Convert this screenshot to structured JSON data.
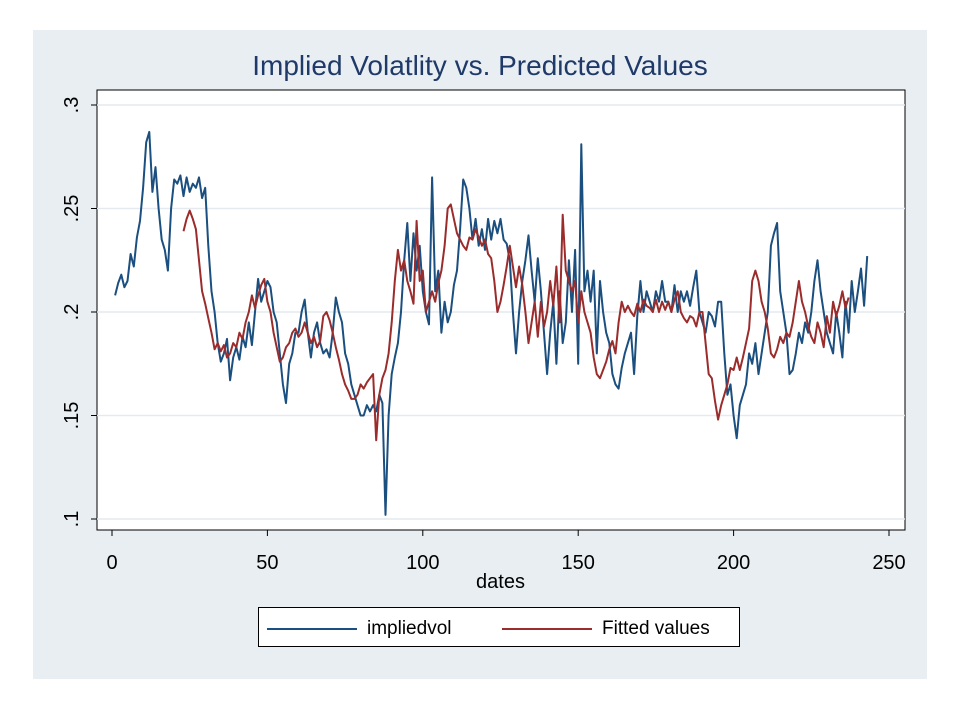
{
  "chart_data": {
    "type": "line",
    "title": "Implied Volatlity vs. Predicted Values",
    "xlabel": "dates",
    "ylabel": "",
    "xlim": [
      0,
      250
    ],
    "ylim": [
      0.1,
      0.3
    ],
    "x_ticks": [
      0,
      50,
      100,
      150,
      200,
      250
    ],
    "x_tick_labels": [
      "0",
      "50",
      "100",
      "150",
      "200",
      "250"
    ],
    "y_ticks": [
      0.1,
      0.15,
      0.2,
      0.25,
      0.3
    ],
    "y_tick_labels": [
      ".1",
      ".15",
      ".2",
      ".25",
      ".3"
    ],
    "grid": "horizontal",
    "legend_position": "bottom",
    "series": [
      {
        "name": "impliedvol",
        "color": "#1b4f7f",
        "x_start": 1,
        "values": [
          0.208,
          0.214,
          0.218,
          0.212,
          0.215,
          0.228,
          0.222,
          0.236,
          0.244,
          0.26,
          0.282,
          0.287,
          0.258,
          0.27,
          0.25,
          0.235,
          0.23,
          0.22,
          0.25,
          0.264,
          0.262,
          0.266,
          0.256,
          0.265,
          0.258,
          0.262,
          0.26,
          0.265,
          0.255,
          0.26,
          0.232,
          0.21,
          0.2,
          0.185,
          0.176,
          0.18,
          0.187,
          0.167,
          0.178,
          0.183,
          0.177,
          0.188,
          0.183,
          0.195,
          0.184,
          0.2,
          0.216,
          0.205,
          0.21,
          0.215,
          0.212,
          0.2,
          0.195,
          0.18,
          0.165,
          0.156,
          0.175,
          0.18,
          0.19,
          0.19,
          0.2,
          0.206,
          0.19,
          0.178,
          0.19,
          0.195,
          0.185,
          0.18,
          0.182,
          0.178,
          0.19,
          0.207,
          0.2,
          0.195,
          0.18,
          0.175,
          0.165,
          0.16,
          0.155,
          0.15,
          0.15,
          0.155,
          0.152,
          0.155,
          0.152,
          0.16,
          0.156,
          0.102,
          0.15,
          0.17,
          0.178,
          0.185,
          0.2,
          0.225,
          0.243,
          0.215,
          0.238,
          0.22,
          0.232,
          0.21,
          0.2,
          0.194,
          0.265,
          0.21,
          0.22,
          0.19,
          0.205,
          0.195,
          0.2,
          0.213,
          0.22,
          0.24,
          0.264,
          0.26,
          0.25,
          0.235,
          0.245,
          0.232,
          0.24,
          0.23,
          0.245,
          0.235,
          0.244,
          0.238,
          0.245,
          0.235,
          0.233,
          0.225,
          0.2,
          0.18,
          0.2,
          0.215,
          0.225,
          0.237,
          0.22,
          0.205,
          0.226,
          0.21,
          0.19,
          0.17,
          0.19,
          0.205,
          0.175,
          0.21,
          0.185,
          0.195,
          0.225,
          0.2,
          0.23,
          0.175,
          0.281,
          0.21,
          0.22,
          0.205,
          0.22,
          0.18,
          0.215,
          0.2,
          0.19,
          0.185,
          0.17,
          0.165,
          0.163,
          0.173,
          0.18,
          0.185,
          0.19,
          0.17,
          0.198,
          0.215,
          0.2,
          0.21,
          0.205,
          0.2,
          0.21,
          0.205,
          0.215,
          0.205,
          0.205,
          0.2,
          0.213,
          0.2,
          0.21,
          0.205,
          0.21,
          0.203,
          0.212,
          0.22,
          0.2,
          0.195,
          0.19,
          0.2,
          0.198,
          0.193,
          0.205,
          0.205,
          0.18,
          0.16,
          0.165,
          0.15,
          0.139,
          0.155,
          0.16,
          0.165,
          0.18,
          0.175,
          0.185,
          0.17,
          0.18,
          0.19,
          0.2,
          0.232,
          0.238,
          0.243,
          0.21,
          0.2,
          0.19,
          0.17,
          0.172,
          0.18,
          0.19,
          0.185,
          0.195,
          0.19,
          0.2,
          0.215,
          0.225,
          0.21,
          0.2,
          0.19,
          0.185,
          0.18,
          0.2,
          0.19,
          0.178,
          0.205,
          0.19,
          0.215,
          0.2,
          0.21,
          0.221,
          0.203,
          0.227
        ]
      },
      {
        "name": "Fitted values",
        "color": "#9b2c2c",
        "x_start": 23,
        "values": [
          0.239,
          0.245,
          0.249,
          0.245,
          0.24,
          0.225,
          0.21,
          0.204,
          0.197,
          0.19,
          0.182,
          0.185,
          0.181,
          0.184,
          0.178,
          0.18,
          0.185,
          0.183,
          0.19,
          0.187,
          0.195,
          0.2,
          0.208,
          0.202,
          0.208,
          0.213,
          0.216,
          0.205,
          0.2,
          0.19,
          0.183,
          0.176,
          0.178,
          0.183,
          0.185,
          0.19,
          0.192,
          0.188,
          0.19,
          0.195,
          0.19,
          0.185,
          0.188,
          0.183,
          0.186,
          0.198,
          0.2,
          0.196,
          0.19,
          0.183,
          0.177,
          0.17,
          0.165,
          0.162,
          0.158,
          0.158,
          0.16,
          0.165,
          0.163,
          0.166,
          0.168,
          0.17,
          0.138,
          0.16,
          0.168,
          0.172,
          0.18,
          0.195,
          0.215,
          0.23,
          0.22,
          0.225,
          0.215,
          0.21,
          0.204,
          0.244,
          0.215,
          0.22,
          0.2,
          0.205,
          0.21,
          0.205,
          0.214,
          0.22,
          0.232,
          0.25,
          0.252,
          0.245,
          0.238,
          0.235,
          0.232,
          0.23,
          0.236,
          0.235,
          0.24,
          0.236,
          0.232,
          0.235,
          0.228,
          0.226,
          0.215,
          0.2,
          0.205,
          0.213,
          0.222,
          0.232,
          0.222,
          0.212,
          0.222,
          0.213,
          0.2,
          0.185,
          0.195,
          0.205,
          0.188,
          0.205,
          0.193,
          0.2,
          0.215,
          0.203,
          0.222,
          0.195,
          0.247,
          0.22,
          0.215,
          0.21,
          0.215,
          0.195,
          0.21,
          0.2,
          0.195,
          0.19,
          0.178,
          0.17,
          0.168,
          0.172,
          0.176,
          0.182,
          0.186,
          0.18,
          0.195,
          0.205,
          0.2,
          0.203,
          0.2,
          0.198,
          0.204,
          0.2,
          0.206,
          0.203,
          0.202,
          0.2,
          0.206,
          0.2,
          0.205,
          0.201,
          0.205,
          0.2,
          0.206,
          0.21,
          0.2,
          0.197,
          0.195,
          0.198,
          0.197,
          0.193,
          0.2,
          0.2,
          0.185,
          0.17,
          0.168,
          0.157,
          0.148,
          0.155,
          0.16,
          0.165,
          0.173,
          0.172,
          0.178,
          0.172,
          0.178,
          0.185,
          0.192,
          0.215,
          0.22,
          0.215,
          0.205,
          0.2,
          0.192,
          0.18,
          0.178,
          0.182,
          0.188,
          0.185,
          0.19,
          0.188,
          0.195,
          0.205,
          0.215,
          0.205,
          0.2,
          0.193,
          0.188,
          0.185,
          0.195,
          0.19,
          0.183,
          0.198,
          0.19,
          0.205,
          0.198,
          0.203,
          0.21,
          0.202,
          0.207
        ]
      }
    ]
  }
}
